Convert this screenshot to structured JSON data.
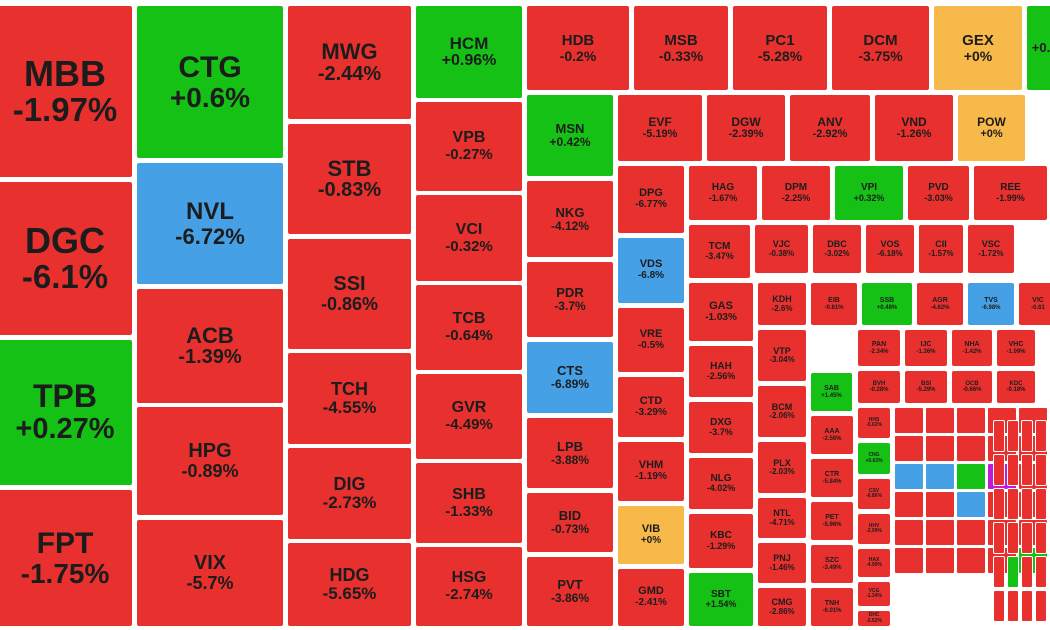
{
  "colors": {
    "down": "#e8312e",
    "up": "#14c114",
    "floor": "#46a0e6",
    "ref": "#f7b94a"
  },
  "chart_data": {
    "type": "treemap",
    "tiles": [
      {
        "ticker": "MBB",
        "change": "-1.97%",
        "status": "down"
      },
      {
        "ticker": "DGC",
        "change": "-6.1%",
        "status": "down"
      },
      {
        "ticker": "TPB",
        "change": "+0.27%",
        "status": "up"
      },
      {
        "ticker": "FPT",
        "change": "-1.75%",
        "status": "down"
      },
      {
        "ticker": "CTG",
        "change": "+0.6%",
        "status": "up"
      },
      {
        "ticker": "NVL",
        "change": "-6.72%",
        "status": "floor"
      },
      {
        "ticker": "ACB",
        "change": "-1.39%",
        "status": "down"
      },
      {
        "ticker": "HPG",
        "change": "-0.89%",
        "status": "down"
      },
      {
        "ticker": "VIX",
        "change": "-5.7%",
        "status": "down"
      },
      {
        "ticker": "MWG",
        "change": "-2.44%",
        "status": "down"
      },
      {
        "ticker": "STB",
        "change": "-0.83%",
        "status": "down"
      },
      {
        "ticker": "SSI",
        "change": "-0.86%",
        "status": "down"
      },
      {
        "ticker": "TCH",
        "change": "-4.55%",
        "status": "down"
      },
      {
        "ticker": "DIG",
        "change": "-2.73%",
        "status": "down"
      },
      {
        "ticker": "HDG",
        "change": "-5.65%",
        "status": "down"
      },
      {
        "ticker": "HCM",
        "change": "+0.96%",
        "status": "up"
      },
      {
        "ticker": "VPB",
        "change": "-0.27%",
        "status": "down"
      },
      {
        "ticker": "VCI",
        "change": "-0.32%",
        "status": "down"
      },
      {
        "ticker": "TCB",
        "change": "-0.64%",
        "status": "down"
      },
      {
        "ticker": "GVR",
        "change": "-4.49%",
        "status": "down"
      },
      {
        "ticker": "SHB",
        "change": "-1.33%",
        "status": "down"
      },
      {
        "ticker": "HSG",
        "change": "-2.74%",
        "status": "down"
      },
      {
        "ticker": "HDB",
        "change": "-0.2%",
        "status": "down"
      },
      {
        "ticker": "MSB",
        "change": "-0.33%",
        "status": "down"
      },
      {
        "ticker": "PC1",
        "change": "-5.28%",
        "status": "down"
      },
      {
        "ticker": "DCM",
        "change": "-3.75%",
        "status": "down"
      },
      {
        "ticker": "GEX",
        "change": "+0%",
        "status": "ref"
      },
      {
        "ticker": "",
        "change": "+0.",
        "status": "up"
      },
      {
        "ticker": "MSN",
        "change": "+0.42%",
        "status": "up"
      },
      {
        "ticker": "NKG",
        "change": "-4.12%",
        "status": "down"
      },
      {
        "ticker": "PDR",
        "change": "-3.7%",
        "status": "down"
      },
      {
        "ticker": "CTS",
        "change": "-6.89%",
        "status": "floor"
      },
      {
        "ticker": "LPB",
        "change": "-3.88%",
        "status": "down"
      },
      {
        "ticker": "BID",
        "change": "-0.73%",
        "status": "down"
      },
      {
        "ticker": "PVT",
        "change": "-3.86%",
        "status": "down"
      },
      {
        "ticker": "EVF",
        "change": "-5.19%",
        "status": "down"
      },
      {
        "ticker": "DGW",
        "change": "-2.39%",
        "status": "down"
      },
      {
        "ticker": "ANV",
        "change": "-2.92%",
        "status": "down"
      },
      {
        "ticker": "VND",
        "change": "-1.26%",
        "status": "down"
      },
      {
        "ticker": "POW",
        "change": "+0%",
        "status": "ref"
      },
      {
        "ticker": "DPG",
        "change": "-6.77%",
        "status": "down"
      },
      {
        "ticker": "VDS",
        "change": "-6.8%",
        "status": "floor"
      },
      {
        "ticker": "VRE",
        "change": "-0.5%",
        "status": "down"
      },
      {
        "ticker": "CTD",
        "change": "-3.29%",
        "status": "down"
      },
      {
        "ticker": "VHM",
        "change": "-1.19%",
        "status": "down"
      },
      {
        "ticker": "VIB",
        "change": "+0%",
        "status": "ref"
      },
      {
        "ticker": "GMD",
        "change": "-2.41%",
        "status": "down"
      },
      {
        "ticker": "HAG",
        "change": "-1.67%",
        "status": "down"
      },
      {
        "ticker": "DPM",
        "change": "-2.25%",
        "status": "down"
      },
      {
        "ticker": "VPI",
        "change": "+0.32%",
        "status": "up"
      },
      {
        "ticker": "PVD",
        "change": "-3.03%",
        "status": "down"
      },
      {
        "ticker": "REE",
        "change": "-1.99%",
        "status": "down"
      },
      {
        "ticker": "TCM",
        "change": "-3.47%",
        "status": "down"
      },
      {
        "ticker": "VJC",
        "change": "-0.38%",
        "status": "down"
      },
      {
        "ticker": "DBC",
        "change": "-3.02%",
        "status": "down"
      },
      {
        "ticker": "VOS",
        "change": "-6.18%",
        "status": "down"
      },
      {
        "ticker": "CII",
        "change": "-1.57%",
        "status": "down"
      },
      {
        "ticker": "VSC",
        "change": "-1.72%",
        "status": "down"
      },
      {
        "ticker": "GAS",
        "change": "-1.03%",
        "status": "down"
      },
      {
        "ticker": "KDH",
        "change": "-2.6%",
        "status": "down"
      },
      {
        "ticker": "EIB",
        "change": "-0.81%",
        "status": "down"
      },
      {
        "ticker": "SSB",
        "change": "+0.48%",
        "status": "up"
      },
      {
        "ticker": "AGR",
        "change": "-4.62%",
        "status": "down"
      },
      {
        "ticker": "TVS",
        "change": "-6.98%",
        "status": "floor"
      },
      {
        "ticker": "VIC",
        "change": "-0.61",
        "status": "down"
      },
      {
        "ticker": "HAH",
        "change": "-2.56%",
        "status": "down"
      },
      {
        "ticker": "VTP",
        "change": "-3.04%",
        "status": "down"
      },
      {
        "ticker": "DXG",
        "change": "-3.7%",
        "status": "down"
      },
      {
        "ticker": "BCM",
        "change": "-2.06%",
        "status": "down"
      },
      {
        "ticker": "NLG",
        "change": "-4.02%",
        "status": "down"
      },
      {
        "ticker": "PLX",
        "change": "-2.03%",
        "status": "down"
      },
      {
        "ticker": "KBC",
        "change": "-1.29%",
        "status": "down"
      },
      {
        "ticker": "NTL",
        "change": "-4.71%",
        "status": "down"
      },
      {
        "ticker": "SBT",
        "change": "+1.54%",
        "status": "up"
      },
      {
        "ticker": "PNJ",
        "change": "-1.46%",
        "status": "down"
      },
      {
        "ticker": "CMG",
        "change": "-2.86%",
        "status": "down"
      },
      {
        "ticker": "SAB",
        "change": "+1.45%",
        "status": "up"
      },
      {
        "ticker": "AAA",
        "change": "-2.56%",
        "status": "down"
      },
      {
        "ticker": "CTR",
        "change": "-5.84%",
        "status": "down"
      },
      {
        "ticker": "PET",
        "change": "-5.96%",
        "status": "down"
      },
      {
        "ticker": "SZC",
        "change": "-3.49%",
        "status": "down"
      },
      {
        "ticker": "TNH",
        "change": "-6.01%",
        "status": "down"
      },
      {
        "ticker": "PAN",
        "change": "-2.34%",
        "status": "down"
      },
      {
        "ticker": "IJC",
        "change": "-1.36%",
        "status": "down"
      },
      {
        "ticker": "NHA",
        "change": "-1.42%",
        "status": "down"
      },
      {
        "ticker": "VHC",
        "change": "-1.09%",
        "status": "down"
      },
      {
        "ticker": "BVH",
        "change": "-0.28%",
        "status": "down"
      },
      {
        "ticker": "BSI",
        "change": "-5.29%",
        "status": "down"
      },
      {
        "ticker": "OCB",
        "change": "-0.66%",
        "status": "down"
      },
      {
        "ticker": "KDC",
        "change": "-0.18%",
        "status": "down"
      },
      {
        "ticker": "HHS",
        "change": "-5.02%",
        "status": "down"
      },
      {
        "ticker": "CNG",
        "change": "+0.63%",
        "status": "up"
      },
      {
        "ticker": "CSV",
        "change": "-6.86%",
        "status": "down"
      },
      {
        "ticker": "HHV",
        "change": "-2.99%",
        "status": "down"
      },
      {
        "ticker": "HAX",
        "change": "-4.99%",
        "status": "down"
      },
      {
        "ticker": "VCG",
        "change": "-1.34%",
        "status": "down"
      },
      {
        "ticker": "DHC",
        "change": "-2.52%",
        "status": "down"
      }
    ]
  }
}
